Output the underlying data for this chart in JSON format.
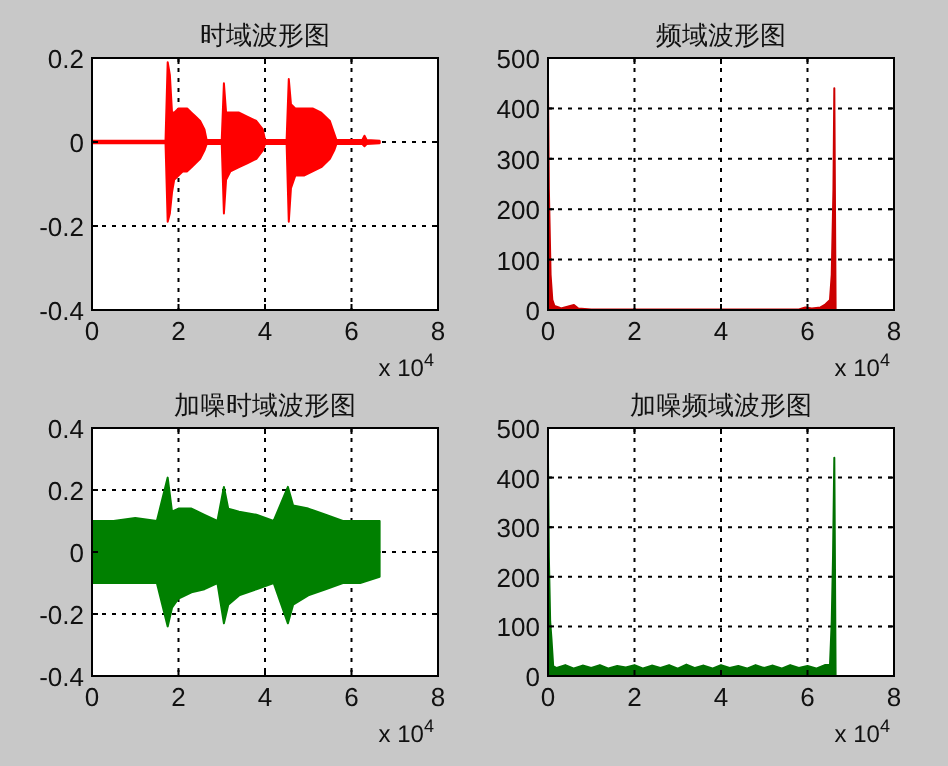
{
  "chart_data": [
    {
      "type": "area",
      "title": "时域波形图",
      "xlim": [
        0,
        8
      ],
      "ylim": [
        -0.4,
        0.2
      ],
      "grid": true,
      "xticks": [
        0,
        2,
        4,
        6,
        8
      ],
      "yticks": [
        -0.4,
        -0.2,
        0,
        0.2
      ],
      "annotations": [
        "x 10$^{4}$"
      ],
      "x": [
        0,
        1.7,
        1.75,
        1.8,
        1.85,
        1.9,
        2.0,
        2.1,
        2.2,
        2.3,
        2.4,
        2.5,
        2.6,
        2.65,
        3.0,
        3.05,
        3.1,
        3.2,
        3.4,
        3.6,
        3.8,
        3.95,
        4.0,
        4.5,
        4.55,
        4.6,
        4.7,
        4.9,
        5.1,
        5.3,
        5.5,
        5.6,
        5.65,
        6.25,
        6.3,
        6.35,
        6.65
      ],
      "series": [
        {
          "color": "#ff0000",
          "values": [
            0.003,
            0.003,
            0.19,
            0.16,
            0.07,
            0.07,
            0.08,
            0.08,
            0.08,
            0.07,
            0.06,
            0.05,
            0.03,
            0.005,
            0.005,
            0.14,
            0.07,
            0.07,
            0.07,
            0.06,
            0.05,
            0.03,
            0.005,
            0.005,
            0.15,
            0.09,
            0.08,
            0.08,
            0.08,
            0.07,
            0.05,
            0.02,
            0.005,
            0.005,
            0.015,
            0.005,
            0.003
          ]
        },
        {
          "color": "#ff0000",
          "values": [
            -0.003,
            -0.003,
            -0.19,
            -0.17,
            -0.12,
            -0.09,
            -0.08,
            -0.07,
            -0.07,
            -0.06,
            -0.05,
            -0.04,
            -0.02,
            -0.005,
            -0.005,
            -0.17,
            -0.09,
            -0.07,
            -0.06,
            -0.05,
            -0.04,
            -0.02,
            -0.005,
            -0.005,
            -0.19,
            -0.11,
            -0.08,
            -0.08,
            -0.07,
            -0.06,
            -0.04,
            -0.02,
            -0.005,
            -0.005,
            -0.01,
            -0.005,
            -0.003
          ]
        }
      ]
    },
    {
      "type": "area",
      "title": "频域波形图",
      "xlim": [
        0,
        8
      ],
      "ylim": [
        0,
        500
      ],
      "grid": true,
      "xticks": [
        0,
        2,
        4,
        6,
        8
      ],
      "yticks": [
        0,
        100,
        200,
        300,
        400,
        500
      ],
      "annotations": [
        "x 10$^{4}$"
      ],
      "series": [
        {
          "color": "#cc0000",
          "x": [
            0,
            0.02,
            0.06,
            0.1,
            0.15,
            0.25,
            0.3,
            0.6,
            0.7,
            1.0,
            3.0,
            5.8,
            5.95,
            6.1,
            6.3,
            6.4,
            6.52,
            6.56,
            6.6,
            6.62,
            6.65
          ],
          "values": [
            440,
            240,
            70,
            20,
            8,
            5,
            3,
            10,
            3,
            1,
            1,
            1,
            5,
            3,
            5,
            10,
            20,
            70,
            240,
            440,
            0
          ]
        }
      ]
    },
    {
      "type": "area",
      "title": "加噪时域波形图",
      "xlim": [
        0,
        8
      ],
      "ylim": [
        -0.4,
        0.4
      ],
      "grid": true,
      "xticks": [
        0,
        2,
        4,
        6,
        8
      ],
      "yticks": [
        -0.4,
        -0.2,
        0,
        0.2,
        0.4
      ],
      "annotations": [
        "x 10$^{4}$"
      ],
      "x": [
        0,
        0.5,
        1.0,
        1.5,
        1.75,
        1.85,
        2.0,
        2.3,
        2.6,
        2.9,
        3.05,
        3.15,
        3.4,
        3.8,
        4.2,
        4.53,
        4.65,
        5.0,
        5.4,
        5.8,
        6.2,
        6.65
      ],
      "series": [
        {
          "color": "#008000",
          "values": [
            0.1,
            0.1,
            0.11,
            0.1,
            0.24,
            0.13,
            0.14,
            0.14,
            0.12,
            0.1,
            0.21,
            0.14,
            0.13,
            0.12,
            0.1,
            0.21,
            0.15,
            0.14,
            0.12,
            0.1,
            0.1,
            0.1
          ]
        },
        {
          "color": "#008000",
          "values": [
            -0.1,
            -0.1,
            -0.1,
            -0.1,
            -0.24,
            -0.18,
            -0.15,
            -0.13,
            -0.12,
            -0.1,
            -0.23,
            -0.17,
            -0.14,
            -0.12,
            -0.1,
            -0.23,
            -0.17,
            -0.14,
            -0.12,
            -0.1,
            -0.1,
            -0.08
          ]
        }
      ]
    },
    {
      "type": "area",
      "title": "加噪频域波形图",
      "xlim": [
        0,
        8
      ],
      "ylim": [
        0,
        500
      ],
      "grid": true,
      "xticks": [
        0,
        2,
        4,
        6,
        8
      ],
      "yticks": [
        0,
        100,
        200,
        300,
        400,
        500
      ],
      "annotations": [
        "x 10$^{4}$"
      ],
      "series": [
        {
          "color": "#007000",
          "x": [
            0,
            0.02,
            0.05,
            0.08,
            0.12,
            0.2,
            0.4,
            0.6,
            0.8,
            1.0,
            1.2,
            1.4,
            1.6,
            1.8,
            2.0,
            2.2,
            2.4,
            2.6,
            2.8,
            3.0,
            3.2,
            3.4,
            3.6,
            3.8,
            4.0,
            4.2,
            4.4,
            4.6,
            4.8,
            5.0,
            5.2,
            5.4,
            5.6,
            5.8,
            6.0,
            6.2,
            6.4,
            6.52,
            6.56,
            6.59,
            6.62,
            6.65
          ],
          "values": [
            440,
            240,
            110,
            75,
            20,
            16,
            22,
            15,
            21,
            16,
            22,
            15,
            20,
            17,
            22,
            15,
            21,
            16,
            22,
            15,
            23,
            16,
            21,
            15,
            22,
            16,
            20,
            15,
            22,
            16,
            21,
            15,
            22,
            16,
            20,
            15,
            22,
            22,
            110,
            240,
            440,
            0
          ]
        }
      ]
    }
  ]
}
